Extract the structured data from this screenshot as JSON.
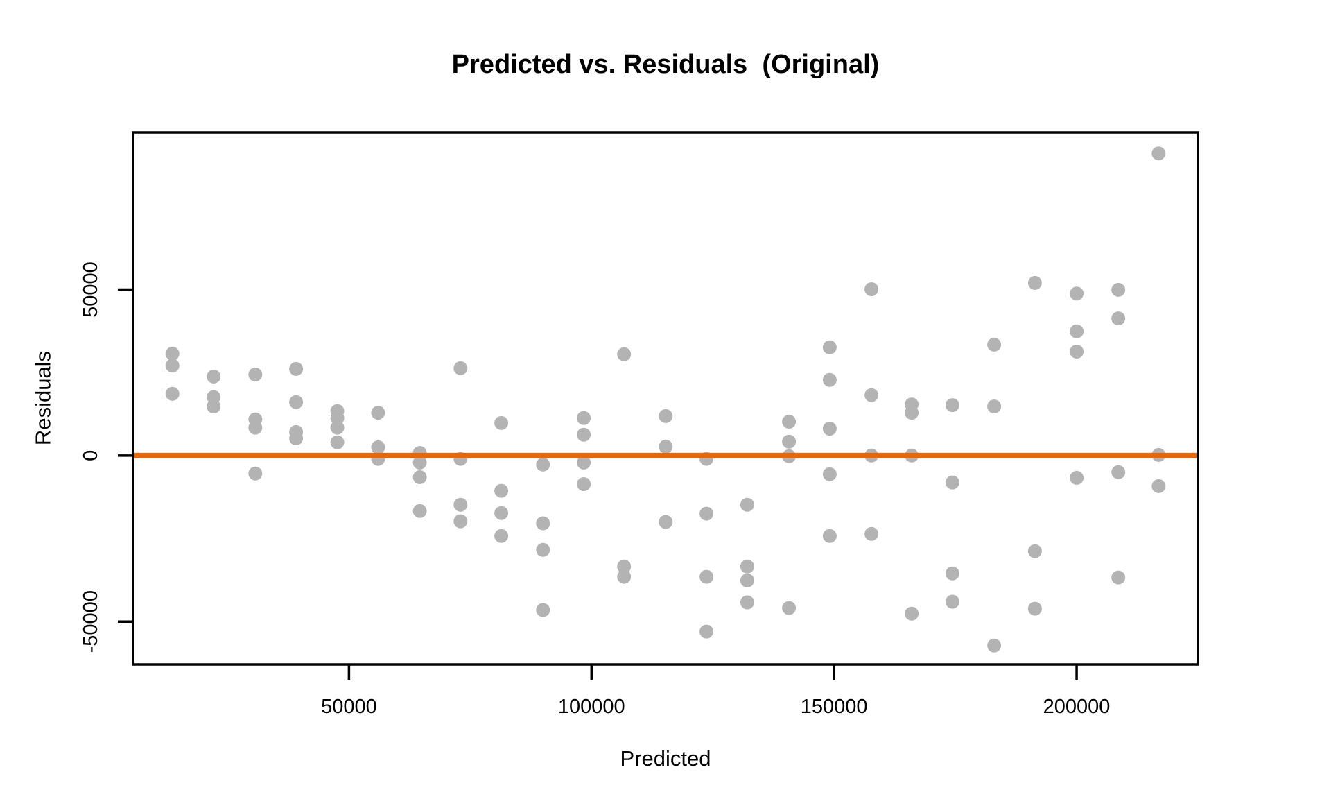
{
  "chart_data": {
    "type": "scatter",
    "title": "Predicted vs. Residuals  (Original)",
    "xlabel": "Predicted",
    "ylabel": "Residuals",
    "x_ticks": [
      50000,
      100000,
      150000,
      200000
    ],
    "y_ticks": [
      -50000,
      0,
      50000
    ],
    "xlim": [
      5500,
      225000
    ],
    "ylim": [
      -62900,
      97300
    ],
    "grid": false,
    "legend": null,
    "point_color": "#B3B3B3",
    "zero_line": {
      "y": 0,
      "color": "#E2690D"
    },
    "points": [
      [
        13600,
        30700
      ],
      [
        13600,
        27100
      ],
      [
        13600,
        18600
      ],
      [
        22100,
        23800
      ],
      [
        22100,
        17600
      ],
      [
        22100,
        14800
      ],
      [
        30700,
        24400
      ],
      [
        30700,
        10900
      ],
      [
        30700,
        8400
      ],
      [
        30700,
        -5400
      ],
      [
        39100,
        26100
      ],
      [
        39100,
        16100
      ],
      [
        39100,
        7100
      ],
      [
        39100,
        5200
      ],
      [
        47600,
        13400
      ],
      [
        47600,
        11300
      ],
      [
        47600,
        8400
      ],
      [
        47600,
        4000
      ],
      [
        56000,
        12900
      ],
      [
        56000,
        2500
      ],
      [
        56000,
        -1000
      ],
      [
        64600,
        800
      ],
      [
        64600,
        -2100
      ],
      [
        64600,
        -6500
      ],
      [
        64600,
        -16700
      ],
      [
        73000,
        26300
      ],
      [
        73000,
        -1000
      ],
      [
        73000,
        -14800
      ],
      [
        73000,
        -19800
      ],
      [
        81400,
        9800
      ],
      [
        81400,
        -10600
      ],
      [
        81400,
        -17300
      ],
      [
        81400,
        -24200
      ],
      [
        90000,
        -2700
      ],
      [
        90000,
        -20400
      ],
      [
        90000,
        -28400
      ],
      [
        90000,
        -46500
      ],
      [
        98400,
        11300
      ],
      [
        98400,
        6300
      ],
      [
        98400,
        -2100
      ],
      [
        98400,
        -8600
      ],
      [
        106700,
        30500
      ],
      [
        106700,
        -33400
      ],
      [
        106700,
        -36500
      ],
      [
        115300,
        11900
      ],
      [
        115300,
        2700
      ],
      [
        115300,
        -20000
      ],
      [
        123700,
        -1000
      ],
      [
        123700,
        -17500
      ],
      [
        123700,
        -36500
      ],
      [
        123700,
        -53000
      ],
      [
        132100,
        -14800
      ],
      [
        132100,
        -33400
      ],
      [
        132100,
        -37600
      ],
      [
        132100,
        -44200
      ],
      [
        140700,
        10200
      ],
      [
        140700,
        4200
      ],
      [
        140700,
        -200
      ],
      [
        140700,
        -45900
      ],
      [
        149100,
        32600
      ],
      [
        149100,
        22800
      ],
      [
        149100,
        8100
      ],
      [
        149100,
        -5600
      ],
      [
        149100,
        -24200
      ],
      [
        157700,
        50100
      ],
      [
        157700,
        18200
      ],
      [
        157700,
        0
      ],
      [
        157700,
        -23600
      ],
      [
        166000,
        15400
      ],
      [
        166000,
        12900
      ],
      [
        166000,
        0
      ],
      [
        166000,
        -47600
      ],
      [
        174400,
        15200
      ],
      [
        174400,
        -8100
      ],
      [
        174400,
        -35500
      ],
      [
        174400,
        -44000
      ],
      [
        183000,
        33400
      ],
      [
        183000,
        14800
      ],
      [
        183000,
        -57200
      ],
      [
        191400,
        52000
      ],
      [
        191400,
        -28800
      ],
      [
        191400,
        -46100
      ],
      [
        200000,
        48800
      ],
      [
        200000,
        37400
      ],
      [
        200000,
        31300
      ],
      [
        200000,
        -6700
      ],
      [
        208600,
        49900
      ],
      [
        208600,
        41300
      ],
      [
        208600,
        -5000
      ],
      [
        208600,
        -36700
      ],
      [
        216900,
        91000
      ],
      [
        216900,
        200
      ],
      [
        216900,
        -9200
      ]
    ]
  }
}
